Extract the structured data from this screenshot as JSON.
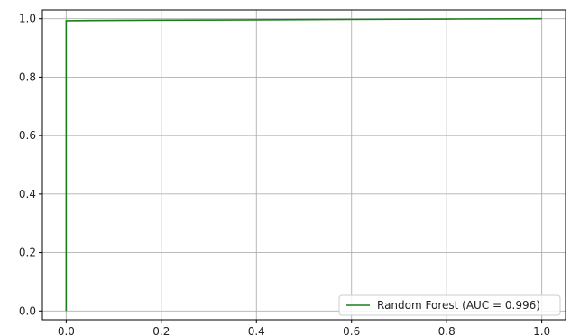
{
  "chart_data": {
    "type": "line",
    "title": "",
    "xlabel": "",
    "ylabel": "",
    "xlim": [
      -0.05,
      1.05
    ],
    "ylim": [
      -0.03,
      1.03
    ],
    "x_ticks": [
      0.0,
      0.2,
      0.4,
      0.6,
      0.8,
      1.0
    ],
    "x_tick_labels": [
      "0.0",
      "0.2",
      "0.4",
      "0.6",
      "0.8",
      "1.0"
    ],
    "y_ticks": [
      0.0,
      0.2,
      0.4,
      0.6,
      0.8,
      1.0
    ],
    "y_tick_labels": [
      "0.0",
      "0.2",
      "0.4",
      "0.6",
      "0.8",
      "1.0"
    ],
    "grid": true,
    "legend_position": "lower-right",
    "series": [
      {
        "name": "Random Forest (AUC = 0.996)",
        "color": "#1a7f1a",
        "x": [
          0.0,
          0.0,
          0.003,
          0.05,
          0.2,
          0.5,
          0.8,
          1.0
        ],
        "y": [
          0.0,
          0.993,
          0.993,
          0.994,
          0.995,
          0.997,
          0.999,
          1.0
        ]
      }
    ]
  }
}
